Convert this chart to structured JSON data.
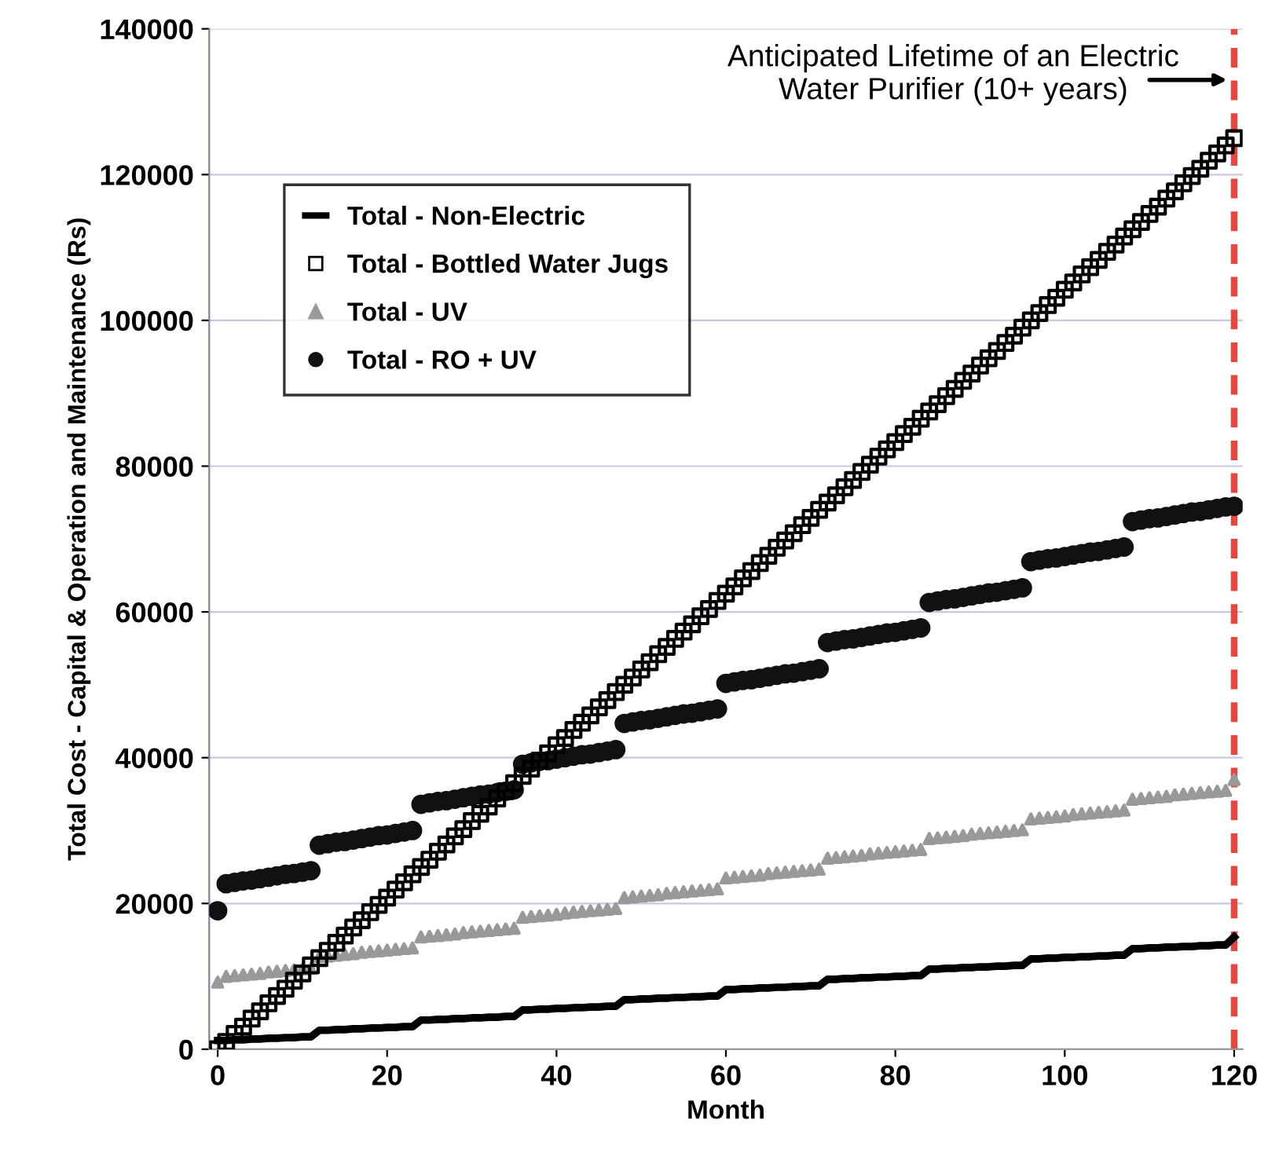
{
  "chart_data": {
    "type": "scatter",
    "xlabel": "Month",
    "ylabel": "Total Cost - Capital & Operation and Maintenance (Rs)",
    "xlim": [
      -1,
      121
    ],
    "ylim": [
      0,
      140000
    ],
    "xticks": [
      0,
      20,
      40,
      60,
      80,
      100,
      120
    ],
    "yticks": [
      0,
      20000,
      40000,
      60000,
      80000,
      100000,
      120000,
      140000
    ],
    "grid": "y",
    "legend": "top left",
    "x": [
      0,
      1,
      2,
      3,
      4,
      5,
      6,
      7,
      8,
      9,
      10,
      11,
      12,
      13,
      14,
      15,
      16,
      17,
      18,
      19,
      20,
      21,
      22,
      23,
      24,
      25,
      26,
      27,
      28,
      29,
      30,
      31,
      32,
      33,
      34,
      35,
      36,
      37,
      38,
      39,
      40,
      41,
      42,
      43,
      44,
      45,
      46,
      47,
      48,
      49,
      50,
      51,
      52,
      53,
      54,
      55,
      56,
      57,
      58,
      59,
      60,
      61,
      62,
      63,
      64,
      65,
      66,
      67,
      68,
      69,
      70,
      71,
      72,
      73,
      74,
      75,
      76,
      77,
      78,
      79,
      80,
      81,
      82,
      83,
      84,
      85,
      86,
      87,
      88,
      89,
      90,
      91,
      92,
      93,
      94,
      95,
      96,
      97,
      98,
      99,
      100,
      101,
      102,
      103,
      104,
      105,
      106,
      107,
      108,
      109,
      110,
      111,
      112,
      113,
      114,
      115,
      116,
      117,
      118,
      119,
      120
    ],
    "annotations": [
      "Anticipated Lifetime of an Electric\nWater Purifier (10+ years)"
    ],
    "ref_lines": [
      {
        "axis": "x",
        "value": 120,
        "color": "#e8453c",
        "line_style": "dashed"
      }
    ],
    "series": [
      {
        "name": "Total - Non-Electric",
        "type": "line",
        "marker": "none",
        "line_style": "solid",
        "color": "#000000",
        "values": [
          1200,
          1200,
          1300,
          1300,
          1400,
          1400,
          1500,
          1500,
          1600,
          1600,
          1700,
          1700,
          2600,
          2600,
          2700,
          2700,
          2800,
          2800,
          2900,
          2900,
          3000,
          3000,
          3100,
          3100,
          4000,
          4000,
          4100,
          4100,
          4200,
          4200,
          4300,
          4300,
          4400,
          4400,
          4500,
          4500,
          5400,
          5400,
          5500,
          5500,
          5600,
          5600,
          5700,
          5700,
          5800,
          5800,
          5900,
          5900,
          6800,
          6800,
          6900,
          6900,
          7000,
          7000,
          7100,
          7100,
          7200,
          7200,
          7300,
          7300,
          8200,
          8200,
          8300,
          8300,
          8400,
          8400,
          8500,
          8500,
          8600,
          8600,
          8700,
          8700,
          9600,
          9600,
          9700,
          9700,
          9800,
          9800,
          9900,
          9900,
          10000,
          10000,
          10100,
          10100,
          11000,
          11000,
          11100,
          11100,
          11200,
          11200,
          11300,
          11300,
          11400,
          11400,
          11500,
          11500,
          12400,
          12400,
          12500,
          12500,
          12600,
          12600,
          12700,
          12700,
          12800,
          12800,
          12900,
          12900,
          13800,
          13800,
          13900,
          13900,
          14000,
          14000,
          14100,
          14100,
          14200,
          14200,
          14300,
          14300,
          15400
        ]
      },
      {
        "name": "Total - Bottled Water Jugs",
        "marker": "square",
        "color": "#000000",
        "values": [
          0,
          1000,
          2100,
          3100,
          4200,
          5200,
          6300,
          7300,
          8300,
          9400,
          10400,
          11500,
          12500,
          13500,
          14600,
          15600,
          16700,
          17700,
          18800,
          19800,
          20800,
          21900,
          22900,
          24000,
          25000,
          26000,
          27100,
          28100,
          29200,
          30200,
          31300,
          32300,
          33300,
          34400,
          35400,
          36500,
          37500,
          38500,
          39600,
          40600,
          41700,
          42700,
          43800,
          44800,
          45800,
          46900,
          47900,
          49000,
          50000,
          51000,
          52100,
          53100,
          54200,
          55200,
          56300,
          57300,
          58300,
          59400,
          60400,
          61500,
          62500,
          63500,
          64600,
          65600,
          66700,
          67700,
          68800,
          69800,
          70800,
          71900,
          72900,
          74000,
          75000,
          76000,
          77100,
          78100,
          79200,
          80200,
          81300,
          82300,
          83300,
          84400,
          85400,
          86500,
          87500,
          88500,
          89600,
          90600,
          91700,
          92700,
          93800,
          94800,
          95800,
          96900,
          97900,
          99000,
          100000,
          101000,
          102100,
          103100,
          104200,
          105200,
          106300,
          107300,
          108300,
          109400,
          110400,
          111500,
          112500,
          113500,
          114600,
          115600,
          116700,
          117700,
          118800,
          119800,
          120800,
          121900,
          122900,
          124000,
          125000
        ]
      },
      {
        "name": "Total - UV",
        "marker": "triangle",
        "color": "#999999",
        "values": [
          9200,
          10000,
          10100,
          10200,
          10300,
          10400,
          10600,
          10700,
          10800,
          10900,
          11000,
          11100,
          12700,
          12800,
          12900,
          13000,
          13100,
          13300,
          13400,
          13500,
          13600,
          13700,
          13800,
          13900,
          15400,
          15500,
          15600,
          15700,
          15800,
          16000,
          16100,
          16200,
          16300,
          16400,
          16500,
          16600,
          18100,
          18200,
          18300,
          18400,
          18500,
          18700,
          18800,
          18900,
          19000,
          19100,
          19200,
          19300,
          20800,
          20900,
          21000,
          21100,
          21200,
          21400,
          21500,
          21600,
          21700,
          21800,
          21900,
          22000,
          23500,
          23600,
          23700,
          23800,
          23900,
          24100,
          24200,
          24300,
          24400,
          24500,
          24600,
          24700,
          26200,
          26300,
          26400,
          26500,
          26600,
          26800,
          26900,
          27000,
          27100,
          27200,
          27300,
          27400,
          28900,
          29000,
          29100,
          29200,
          29300,
          29500,
          29600,
          29700,
          29800,
          29900,
          30000,
          30100,
          31600,
          31700,
          31800,
          31900,
          32000,
          32200,
          32300,
          32400,
          32500,
          32600,
          32700,
          32800,
          34300,
          34400,
          34500,
          34600,
          34700,
          34900,
          35000,
          35100,
          35200,
          35300,
          35400,
          35500,
          37000
        ]
      },
      {
        "name": "Total - RO + UV",
        "marker": "circle",
        "color": "#111111",
        "values": [
          19000,
          22700,
          22900,
          23100,
          23200,
          23400,
          23600,
          23800,
          24000,
          24100,
          24300,
          24500,
          28000,
          28200,
          28400,
          28500,
          28700,
          28900,
          29100,
          29300,
          29400,
          29600,
          29800,
          30000,
          33600,
          33800,
          34000,
          34100,
          34300,
          34500,
          34700,
          34900,
          35000,
          35200,
          35400,
          35600,
          39100,
          39300,
          39500,
          39600,
          39800,
          40000,
          40200,
          40400,
          40500,
          40700,
          40900,
          41100,
          44700,
          44900,
          45100,
          45200,
          45400,
          45600,
          45800,
          46000,
          46100,
          46300,
          46500,
          46700,
          50200,
          50400,
          50600,
          50700,
          50900,
          51100,
          51300,
          51500,
          51600,
          51800,
          52000,
          52200,
          55800,
          56000,
          56200,
          56300,
          56500,
          56700,
          56900,
          57100,
          57200,
          57400,
          57600,
          57800,
          61300,
          61500,
          61700,
          61800,
          62000,
          62200,
          62400,
          62600,
          62700,
          62900,
          63100,
          63300,
          66900,
          67100,
          67300,
          67400,
          67600,
          67800,
          68000,
          68200,
          68300,
          68500,
          68700,
          68900,
          72400,
          72600,
          72800,
          72900,
          73100,
          73300,
          73500,
          73700,
          73800,
          74000,
          74200,
          74400,
          74500
        ]
      }
    ]
  }
}
